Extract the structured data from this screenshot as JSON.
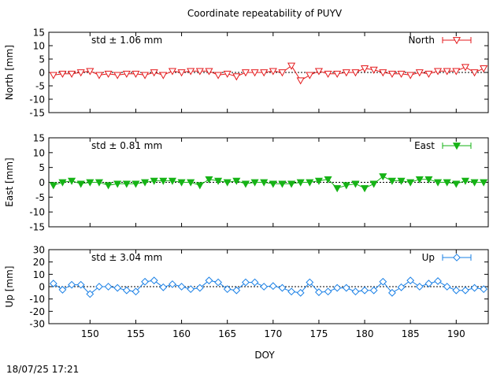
{
  "title": "Coordinate repeatability of PUYV",
  "xlabel": "DOY",
  "timestamp": "18/07/25 17:21",
  "colors": {
    "north": "#e41a1c",
    "east": "#16b316",
    "up": "#1a80e6"
  },
  "chart_data": [
    {
      "type": "line",
      "name": "North",
      "ylabel": "North [mm]",
      "std_label": "std ± 1.06 mm",
      "legend": "top-right",
      "marker": "triangle-down-open",
      "xlim": [
        145.5,
        193.5
      ],
      "ylim": [
        -15,
        15
      ],
      "yticks": [
        -15,
        -10,
        -5,
        0,
        5,
        10,
        15
      ],
      "xticks": [
        150,
        155,
        160,
        165,
        170,
        175,
        180,
        185,
        190
      ],
      "x": [
        146,
        147,
        148,
        149,
        150,
        151,
        152,
        153,
        154,
        155,
        156,
        157,
        158,
        159,
        160,
        161,
        162,
        163,
        164,
        165,
        166,
        167,
        168,
        169,
        170,
        171,
        172,
        173,
        174,
        175,
        176,
        177,
        178,
        179,
        180,
        181,
        182,
        183,
        184,
        185,
        186,
        187,
        188,
        189,
        190,
        191,
        192,
        193
      ],
      "y": [
        -1,
        -0.5,
        -0.5,
        0,
        0.5,
        -1,
        -0.5,
        -1,
        -0.5,
        -0.5,
        -1,
        0,
        -1,
        0.5,
        0,
        0.5,
        0.5,
        0.5,
        -1,
        -0.5,
        -1.5,
        0,
        0,
        0,
        0.5,
        0,
        2.5,
        -3,
        -1,
        0.5,
        -0.5,
        -0.5,
        0,
        0,
        1.5,
        1,
        0,
        -0.5,
        -0.5,
        -1,
        0,
        -0.5,
        0.5,
        0.5,
        0.5,
        2,
        0,
        1.5
      ]
    },
    {
      "type": "line",
      "name": "East",
      "ylabel": "East [mm]",
      "std_label": "std ± 0.81 mm",
      "legend": "top-right",
      "marker": "triangle-down-filled",
      "xlim": [
        145.5,
        193.5
      ],
      "ylim": [
        -15,
        15
      ],
      "yticks": [
        -15,
        -10,
        -5,
        0,
        5,
        10,
        15
      ],
      "xticks": [
        150,
        155,
        160,
        165,
        170,
        175,
        180,
        185,
        190
      ],
      "x": [
        146,
        147,
        148,
        149,
        150,
        151,
        152,
        153,
        154,
        155,
        156,
        157,
        158,
        159,
        160,
        161,
        162,
        163,
        164,
        165,
        166,
        167,
        168,
        169,
        170,
        171,
        172,
        173,
        174,
        175,
        176,
        177,
        178,
        179,
        180,
        181,
        182,
        183,
        184,
        185,
        186,
        187,
        188,
        189,
        190,
        191,
        192,
        193
      ],
      "y": [
        -1,
        0,
        0.5,
        -0.5,
        0,
        0,
        -1,
        -0.5,
        -0.5,
        -0.5,
        0,
        0.5,
        0.5,
        0.5,
        0,
        0,
        -1,
        1,
        0.5,
        0,
        0.5,
        -0.5,
        0,
        0,
        -0.5,
        -0.5,
        -0.5,
        0,
        0,
        0.5,
        1,
        -2,
        -1,
        -0.5,
        -2,
        -0.5,
        2,
        0.5,
        0.5,
        0,
        1,
        1,
        0,
        0,
        -0.5,
        0.5,
        0,
        0
      ]
    },
    {
      "type": "line",
      "name": "Up",
      "ylabel": "Up [mm]",
      "std_label": "std ± 3.04 mm",
      "legend": "top-right",
      "marker": "diamond-open",
      "xlim": [
        145.5,
        193.5
      ],
      "ylim": [
        -30,
        30
      ],
      "yticks": [
        -30,
        -20,
        -10,
        0,
        10,
        20,
        30
      ],
      "xticks": [
        150,
        155,
        160,
        165,
        170,
        175,
        180,
        185,
        190
      ],
      "x": [
        146,
        147,
        148,
        149,
        150,
        151,
        152,
        153,
        154,
        155,
        156,
        157,
        158,
        159,
        160,
        161,
        162,
        163,
        164,
        165,
        166,
        167,
        168,
        169,
        170,
        171,
        172,
        173,
        174,
        175,
        176,
        177,
        178,
        179,
        180,
        181,
        182,
        183,
        184,
        185,
        186,
        187,
        188,
        189,
        190,
        191,
        192,
        193
      ],
      "y": [
        2.5,
        -2.5,
        1.5,
        1.5,
        -6,
        0,
        0,
        -1,
        -3,
        -4,
        4,
        5,
        -0.5,
        2,
        0,
        -2,
        -1,
        5,
        3.5,
        -2,
        -3,
        3.5,
        3.5,
        0,
        0.5,
        -1,
        -4,
        -5,
        3.5,
        -4.5,
        -4,
        -1,
        -1,
        -4,
        -3,
        -3,
        4,
        -5,
        -0.5,
        5,
        0,
        2.5,
        4.5,
        0,
        -3,
        -3,
        -1,
        -2
      ]
    }
  ]
}
